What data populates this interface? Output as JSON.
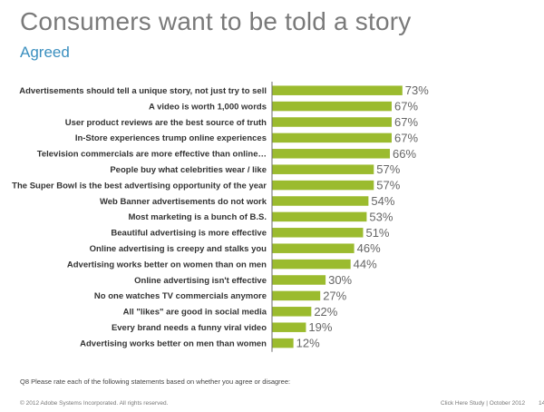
{
  "page": {
    "title": "Consumers want to be told a story",
    "subtitle": "Agreed",
    "question_note": "Q8 Please rate each of the following statements based on whether you agree or disagree:",
    "copyright": "© 2012 Adobe Systems Incorporated. All rights reserved.",
    "source": "Click Here Study  |  October 2012",
    "page_number": "14"
  },
  "chart_data": {
    "type": "bar",
    "orientation": "horizontal",
    "title": "Consumers want to be told a story",
    "subtitle": "Agreed",
    "categories": [
      "Advertisements should tell a unique story, not just try to sell",
      "A video is worth 1,000 words",
      "User product reviews are the best source of truth",
      "In-Store experiences trump online experiences",
      "Television commercials are more effective than online…",
      "People buy what celebrities wear / like",
      "The Super Bowl is the best advertising opportunity of the year",
      "Web Banner advertisements do not work",
      "Most marketing is a bunch of B.S.",
      "Beautiful advertising is more effective",
      "Online advertising is creepy and stalks you",
      "Advertising works better on women than on men",
      "Online advertising isn't effective",
      "No one watches TV commercials anymore",
      "All \"likes\" are good in social media",
      "Every brand needs a funny viral video",
      "Advertising works better on men than women"
    ],
    "values": [
      73,
      67,
      67,
      67,
      66,
      57,
      57,
      54,
      53,
      51,
      46,
      44,
      30,
      27,
      22,
      19,
      12
    ],
    "value_labels": [
      "73%",
      "67%",
      "67%",
      "67%",
      "66%",
      "57%",
      "57%",
      "54%",
      "53%",
      "51%",
      "46%",
      "44%",
      "30%",
      "27%",
      "22%",
      "19%",
      "12%"
    ],
    "value_unit": "%",
    "xlim": [
      0,
      100
    ],
    "bar_color": "#9bbb2e",
    "axis_color": "#6b6b6b",
    "grid": false,
    "legend": "none"
  }
}
